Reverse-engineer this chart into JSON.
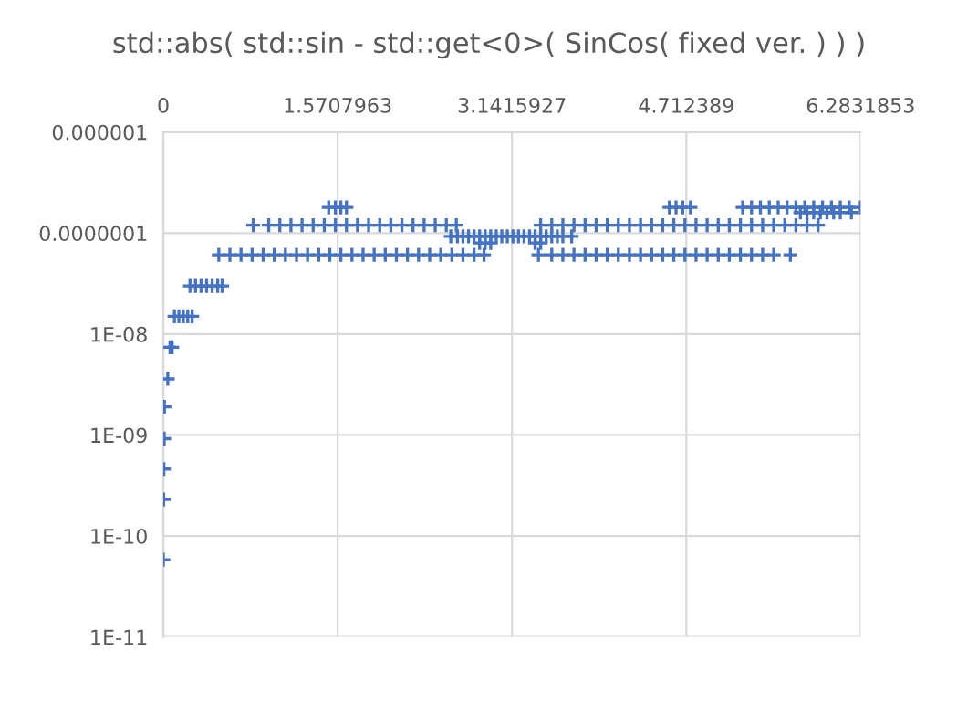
{
  "chart_data": {
    "type": "scatter",
    "title": "std::abs( std::sin - std::get<0>( SinCos( fixed ver. ) ) )",
    "marker": "cross",
    "grid": true,
    "log": "y",
    "xlim": [
      0,
      6.2831853
    ],
    "xticks": [
      0,
      1.5707963,
      3.1415927,
      4.712389,
      6.2831853
    ],
    "ylim": [
      1e-11,
      1e-06
    ],
    "yticks": [
      {
        "value": 1e-06,
        "label": "0.000001"
      },
      {
        "value": 1e-07,
        "label": "0.0000001"
      },
      {
        "value": 1e-08,
        "label": "1E-08"
      },
      {
        "value": 1e-09,
        "label": "1E-09"
      },
      {
        "value": 1e-10,
        "label": "1E-10"
      },
      {
        "value": 1e-11,
        "label": "1E-11"
      }
    ],
    "series": [
      {
        "color": "#4472c4",
        "x": [
          0,
          0.003,
          0.005,
          0.008,
          0.01,
          0.04,
          0.06,
          0.08,
          0.1,
          0.14,
          0.18,
          0.22,
          0.26,
          0.24,
          0.29,
          0.34,
          0.39,
          0.44,
          0.49,
          0.53,
          0.5,
          0.6,
          0.7,
          0.8,
          0.9,
          1.0,
          1.1,
          1.2,
          1.3,
          1.4,
          1.5,
          1.6,
          1.7,
          1.8,
          1.9,
          2.0,
          2.1,
          2.2,
          2.3,
          2.4,
          2.5,
          2.6,
          2.7,
          2.8,
          2.89,
          3.38,
          3.5,
          3.6,
          3.7,
          3.8,
          3.9,
          4.0,
          4.1,
          4.2,
          4.3,
          4.4,
          4.5,
          4.6,
          4.7,
          4.8,
          4.9,
          5.0,
          5.1,
          5.2,
          5.3,
          5.4,
          5.5,
          5.65,
          0.81,
          0.95,
          1.05,
          1.15,
          1.25,
          1.35,
          1.45,
          1.55,
          1.65,
          1.75,
          1.85,
          1.95,
          2.05,
          2.15,
          2.25,
          2.35,
          2.45,
          2.55,
          2.64,
          3.4,
          3.5,
          3.6,
          3.7,
          3.8,
          3.9,
          4.0,
          4.1,
          4.2,
          4.3,
          4.4,
          4.5,
          4.6,
          4.7,
          4.8,
          4.9,
          5.0,
          5.1,
          5.2,
          5.3,
          5.4,
          5.5,
          5.6,
          5.7,
          5.8,
          5.9,
          1.49,
          1.55,
          1.6,
          1.65,
          4.56,
          4.62,
          4.68,
          4.75,
          5.22,
          5.3,
          5.38,
          5.46,
          5.54,
          5.62,
          5.7,
          5.78,
          5.86,
          5.94,
          6.02,
          6.1,
          6.18,
          6.28,
          2.59,
          2.65,
          2.7,
          2.75,
          2.8,
          2.85,
          2.9,
          2.95,
          3.0,
          3.05,
          3.1,
          3.15,
          3.2,
          3.25,
          3.3,
          3.35,
          3.4,
          3.45,
          3.5,
          3.55,
          3.6,
          3.68,
          2.85,
          2.9,
          2.95,
          3.35,
          3.4,
          5.74,
          5.8,
          5.86,
          5.92,
          5.98,
          6.04,
          6.1,
          6.2
        ],
        "values": [
          5.8e-11,
          2.3e-10,
          4.6e-10,
          9.2e-10,
          1.9e-09,
          3.6e-09,
          7.4e-09,
          7.4e-09,
          1.5e-08,
          1.5e-08,
          1.5e-08,
          1.5e-08,
          1.5e-08,
          3e-08,
          3e-08,
          3e-08,
          3e-08,
          3e-08,
          3e-08,
          3e-08,
          6.1e-08,
          6.1e-08,
          6.1e-08,
          6.1e-08,
          6.1e-08,
          6.1e-08,
          6.1e-08,
          6.1e-08,
          6.1e-08,
          6.1e-08,
          6.1e-08,
          6.1e-08,
          6.1e-08,
          6.1e-08,
          6.1e-08,
          6.1e-08,
          6.1e-08,
          6.1e-08,
          6.1e-08,
          6.1e-08,
          6.1e-08,
          6.1e-08,
          6.1e-08,
          6.1e-08,
          6.1e-08,
          6.1e-08,
          6.1e-08,
          6.1e-08,
          6.1e-08,
          6.1e-08,
          6.1e-08,
          6.1e-08,
          6.1e-08,
          6.1e-08,
          6.1e-08,
          6.1e-08,
          6.1e-08,
          6.1e-08,
          6.1e-08,
          6.1e-08,
          6.1e-08,
          6.1e-08,
          6.1e-08,
          6.1e-08,
          6.1e-08,
          6.1e-08,
          6.1e-08,
          6.1e-08,
          1.2e-07,
          1.2e-07,
          1.2e-07,
          1.2e-07,
          1.2e-07,
          1.2e-07,
          1.2e-07,
          1.2e-07,
          1.2e-07,
          1.2e-07,
          1.2e-07,
          1.2e-07,
          1.2e-07,
          1.2e-07,
          1.2e-07,
          1.2e-07,
          1.2e-07,
          1.2e-07,
          1.2e-07,
          1.2e-07,
          1.2e-07,
          1.2e-07,
          1.2e-07,
          1.2e-07,
          1.2e-07,
          1.2e-07,
          1.2e-07,
          1.2e-07,
          1.2e-07,
          1.2e-07,
          1.2e-07,
          1.2e-07,
          1.2e-07,
          1.2e-07,
          1.2e-07,
          1.2e-07,
          1.2e-07,
          1.2e-07,
          1.2e-07,
          1.2e-07,
          1.2e-07,
          1.2e-07,
          1.2e-07,
          1.2e-07,
          1.2e-07,
          1.8e-07,
          1.8e-07,
          1.8e-07,
          1.8e-07,
          1.8e-07,
          1.8e-07,
          1.8e-07,
          1.8e-07,
          1.8e-07,
          1.8e-07,
          1.8e-07,
          1.8e-07,
          1.8e-07,
          1.8e-07,
          1.8e-07,
          1.8e-07,
          1.8e-07,
          1.8e-07,
          1.8e-07,
          1.8e-07,
          1.8e-07,
          1.8e-07,
          9.3e-08,
          9.3e-08,
          9.3e-08,
          9.3e-08,
          9.3e-08,
          9.3e-08,
          9.3e-08,
          9.3e-08,
          9.3e-08,
          9.3e-08,
          9.3e-08,
          9.3e-08,
          9.3e-08,
          9.3e-08,
          9.3e-08,
          9.3e-08,
          9.3e-08,
          9.3e-08,
          9.3e-08,
          9.3e-08,
          9.3e-08,
          9.3e-08,
          8e-08,
          8e-08,
          8e-08,
          8e-08,
          8e-08,
          1.6e-07,
          1.6e-07,
          1.6e-07,
          1.6e-07,
          1.6e-07,
          1.6e-07,
          1.6e-07,
          1.6e-07
        ]
      }
    ]
  }
}
